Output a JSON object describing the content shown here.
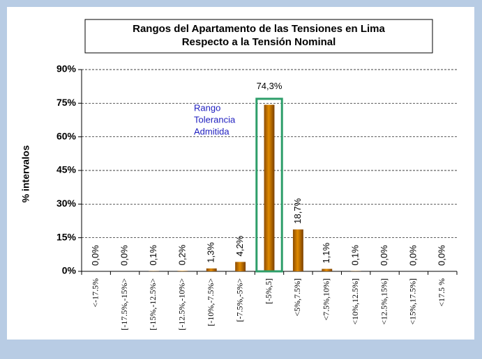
{
  "chart_data": {
    "type": "bar",
    "title": [
      "Rangos del Apartamento  de las Tensiones en Lima",
      "Respecto a la Tensión Nominal"
    ],
    "y_label": "% intervalos",
    "annotation": [
      "Rango",
      "Tolerancia",
      "Admitida"
    ],
    "categories": [
      "<-17.5%",
      "[-17.5%,-15%>",
      "[-15%,-12.5%>",
      "[-12.5%,-10%>",
      "[-10%,-7.5%>",
      "[-7.5%,-5%>",
      "[-5%,5]",
      "<5%,7.5%]",
      "<7.5%,10%]",
      "<10%,12.5%]",
      "<12.5%,15%]",
      "<15%,17.5%]",
      "<17.5 %"
    ],
    "values": [
      0.0,
      0.0,
      0.1,
      0.2,
      1.3,
      4.2,
      74.3,
      18.7,
      1.1,
      0.1,
      0.0,
      0.0,
      0.0
    ],
    "value_labels": [
      "0,0%",
      "0,0%",
      "0,1%",
      "0,2%",
      "1,3%",
      "4,2%",
      "74,3%",
      "18,7%",
      "1,1%",
      "0,1%",
      "0,0%",
      "0,0%",
      "0,0%"
    ],
    "color": "#e08a00",
    "ylim": [
      0,
      90
    ],
    "yticks": [
      {
        "value": 0,
        "label": "0%"
      },
      {
        "value": 15,
        "label": "15%"
      },
      {
        "value": 30,
        "label": "30%"
      },
      {
        "value": 45,
        "label": "45%"
      },
      {
        "value": 60,
        "label": "60%"
      },
      {
        "value": 75,
        "label": "75%"
      },
      {
        "value": 90,
        "label": "90%"
      }
    ],
    "grid": true
  }
}
